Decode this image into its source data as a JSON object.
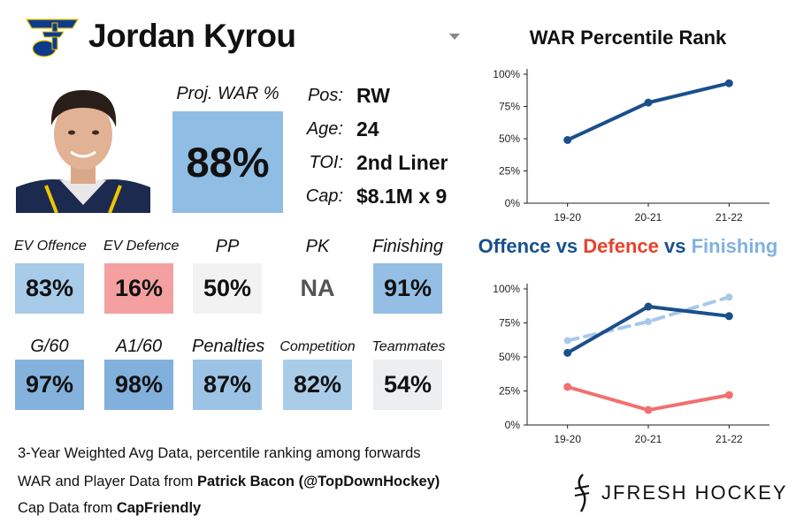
{
  "player": {
    "name": "Jordan Kyrou",
    "proj_war_label": "Proj. WAR %",
    "proj_war_value": "88%",
    "info": [
      {
        "label": "Pos:",
        "value": "RW"
      },
      {
        "label": "Age:",
        "value": "24"
      },
      {
        "label": "TOI:",
        "value": "2nd Liner"
      },
      {
        "label": "Cap:",
        "value": "$8.1M x 9"
      }
    ]
  },
  "stats_row1": [
    {
      "label": "EV Offence",
      "value": "83%",
      "color": "#a7cbe8"
    },
    {
      "label": "EV Defence",
      "value": "16%",
      "color": "#f4a0a0"
    },
    {
      "label": "PP",
      "value": "50%",
      "color": "#f2f2f2"
    },
    {
      "label": "PK",
      "value": "NA",
      "color": "#ffffff"
    },
    {
      "label": "Finishing",
      "value": "91%",
      "color": "#94bee3"
    }
  ],
  "stats_row2": [
    {
      "label": "G/60",
      "value": "97%",
      "color": "#84b2dd"
    },
    {
      "label": "A1/60",
      "value": "98%",
      "color": "#82b0dc"
    },
    {
      "label": "Penalties",
      "value": "87%",
      "color": "#9cc3e5"
    },
    {
      "label": "Competition",
      "value": "82%",
      "color": "#a9cce9"
    },
    {
      "label": "Teammates",
      "value": "54%",
      "color": "#eceef0"
    }
  ],
  "footer": {
    "line1": "3-Year Weighted Avg Data, percentile ranking among forwards",
    "line2_prefix": "WAR and Player Data from ",
    "line2_bold": "Patrick Bacon (@TopDownHockey)",
    "line3_prefix": "Cap Data from ",
    "line3_bold": "CapFriendly",
    "brand": "JFRESH HOCKEY"
  },
  "colors": {
    "offence": "#1a4f8c",
    "defence": "#f07070",
    "finishing": "#a8c8e8",
    "proj_box": "#90bde3"
  },
  "chart_data": [
    {
      "type": "line",
      "title": "WAR Percentile Rank",
      "categories": [
        "19-20",
        "20-21",
        "21-22"
      ],
      "yticks": [
        "0%",
        "25%",
        "50%",
        "75%",
        "100%"
      ],
      "ylim": [
        0,
        100
      ],
      "series": [
        {
          "values": [
            49,
            78,
            93
          ],
          "color": "#1a4f8c",
          "dashed": false
        }
      ]
    },
    {
      "type": "line",
      "title_parts": [
        {
          "text": "Offence",
          "color": "#1a4f8c"
        },
        {
          "text": " vs ",
          "color": "#1a4f8c"
        },
        {
          "text": "Defence",
          "color": "#e8402c"
        },
        {
          "text": " vs ",
          "color": "#1a4f8c"
        },
        {
          "text": "Finishing",
          "color": "#7fb2df"
        }
      ],
      "categories": [
        "19-20",
        "20-21",
        "21-22"
      ],
      "yticks": [
        "0%",
        "25%",
        "50%",
        "75%",
        "100%"
      ],
      "ylim": [
        0,
        100
      ],
      "series": [
        {
          "values": [
            62,
            76,
            94
          ],
          "color": "#a8c8e8",
          "dashed": true
        },
        {
          "values": [
            53,
            87,
            80
          ],
          "color": "#1a4f8c",
          "dashed": false
        },
        {
          "values": [
            28,
            11,
            22
          ],
          "color": "#f07070",
          "dashed": false
        }
      ]
    }
  ]
}
